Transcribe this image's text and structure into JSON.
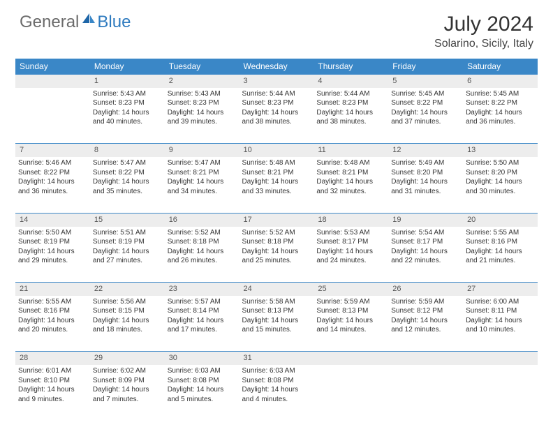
{
  "logo": {
    "text1": "General",
    "text2": "Blue"
  },
  "title": "July 2024",
  "subtitle": "Solarino, Sicily, Italy",
  "colors": {
    "header_bg": "#3a87c7",
    "header_text": "#ffffff",
    "daynum_bg": "#ededed",
    "logo_gray": "#6b6b6b",
    "logo_blue": "#2f7bbf"
  },
  "weekdays": [
    "Sunday",
    "Monday",
    "Tuesday",
    "Wednesday",
    "Thursday",
    "Friday",
    "Saturday"
  ],
  "weeks": [
    {
      "nums": [
        "",
        "1",
        "2",
        "3",
        "4",
        "5",
        "6"
      ],
      "cells": [
        null,
        {
          "sunrise": "Sunrise: 5:43 AM",
          "sunset": "Sunset: 8:23 PM",
          "day1": "Daylight: 14 hours",
          "day2": "and 40 minutes."
        },
        {
          "sunrise": "Sunrise: 5:43 AM",
          "sunset": "Sunset: 8:23 PM",
          "day1": "Daylight: 14 hours",
          "day2": "and 39 minutes."
        },
        {
          "sunrise": "Sunrise: 5:44 AM",
          "sunset": "Sunset: 8:23 PM",
          "day1": "Daylight: 14 hours",
          "day2": "and 38 minutes."
        },
        {
          "sunrise": "Sunrise: 5:44 AM",
          "sunset": "Sunset: 8:23 PM",
          "day1": "Daylight: 14 hours",
          "day2": "and 38 minutes."
        },
        {
          "sunrise": "Sunrise: 5:45 AM",
          "sunset": "Sunset: 8:22 PM",
          "day1": "Daylight: 14 hours",
          "day2": "and 37 minutes."
        },
        {
          "sunrise": "Sunrise: 5:45 AM",
          "sunset": "Sunset: 8:22 PM",
          "day1": "Daylight: 14 hours",
          "day2": "and 36 minutes."
        }
      ]
    },
    {
      "nums": [
        "7",
        "8",
        "9",
        "10",
        "11",
        "12",
        "13"
      ],
      "cells": [
        {
          "sunrise": "Sunrise: 5:46 AM",
          "sunset": "Sunset: 8:22 PM",
          "day1": "Daylight: 14 hours",
          "day2": "and 36 minutes."
        },
        {
          "sunrise": "Sunrise: 5:47 AM",
          "sunset": "Sunset: 8:22 PM",
          "day1": "Daylight: 14 hours",
          "day2": "and 35 minutes."
        },
        {
          "sunrise": "Sunrise: 5:47 AM",
          "sunset": "Sunset: 8:21 PM",
          "day1": "Daylight: 14 hours",
          "day2": "and 34 minutes."
        },
        {
          "sunrise": "Sunrise: 5:48 AM",
          "sunset": "Sunset: 8:21 PM",
          "day1": "Daylight: 14 hours",
          "day2": "and 33 minutes."
        },
        {
          "sunrise": "Sunrise: 5:48 AM",
          "sunset": "Sunset: 8:21 PM",
          "day1": "Daylight: 14 hours",
          "day2": "and 32 minutes."
        },
        {
          "sunrise": "Sunrise: 5:49 AM",
          "sunset": "Sunset: 8:20 PM",
          "day1": "Daylight: 14 hours",
          "day2": "and 31 minutes."
        },
        {
          "sunrise": "Sunrise: 5:50 AM",
          "sunset": "Sunset: 8:20 PM",
          "day1": "Daylight: 14 hours",
          "day2": "and 30 minutes."
        }
      ]
    },
    {
      "nums": [
        "14",
        "15",
        "16",
        "17",
        "18",
        "19",
        "20"
      ],
      "cells": [
        {
          "sunrise": "Sunrise: 5:50 AM",
          "sunset": "Sunset: 8:19 PM",
          "day1": "Daylight: 14 hours",
          "day2": "and 29 minutes."
        },
        {
          "sunrise": "Sunrise: 5:51 AM",
          "sunset": "Sunset: 8:19 PM",
          "day1": "Daylight: 14 hours",
          "day2": "and 27 minutes."
        },
        {
          "sunrise": "Sunrise: 5:52 AM",
          "sunset": "Sunset: 8:18 PM",
          "day1": "Daylight: 14 hours",
          "day2": "and 26 minutes."
        },
        {
          "sunrise": "Sunrise: 5:52 AM",
          "sunset": "Sunset: 8:18 PM",
          "day1": "Daylight: 14 hours",
          "day2": "and 25 minutes."
        },
        {
          "sunrise": "Sunrise: 5:53 AM",
          "sunset": "Sunset: 8:17 PM",
          "day1": "Daylight: 14 hours",
          "day2": "and 24 minutes."
        },
        {
          "sunrise": "Sunrise: 5:54 AM",
          "sunset": "Sunset: 8:17 PM",
          "day1": "Daylight: 14 hours",
          "day2": "and 22 minutes."
        },
        {
          "sunrise": "Sunrise: 5:55 AM",
          "sunset": "Sunset: 8:16 PM",
          "day1": "Daylight: 14 hours",
          "day2": "and 21 minutes."
        }
      ]
    },
    {
      "nums": [
        "21",
        "22",
        "23",
        "24",
        "25",
        "26",
        "27"
      ],
      "cells": [
        {
          "sunrise": "Sunrise: 5:55 AM",
          "sunset": "Sunset: 8:16 PM",
          "day1": "Daylight: 14 hours",
          "day2": "and 20 minutes."
        },
        {
          "sunrise": "Sunrise: 5:56 AM",
          "sunset": "Sunset: 8:15 PM",
          "day1": "Daylight: 14 hours",
          "day2": "and 18 minutes."
        },
        {
          "sunrise": "Sunrise: 5:57 AM",
          "sunset": "Sunset: 8:14 PM",
          "day1": "Daylight: 14 hours",
          "day2": "and 17 minutes."
        },
        {
          "sunrise": "Sunrise: 5:58 AM",
          "sunset": "Sunset: 8:13 PM",
          "day1": "Daylight: 14 hours",
          "day2": "and 15 minutes."
        },
        {
          "sunrise": "Sunrise: 5:59 AM",
          "sunset": "Sunset: 8:13 PM",
          "day1": "Daylight: 14 hours",
          "day2": "and 14 minutes."
        },
        {
          "sunrise": "Sunrise: 5:59 AM",
          "sunset": "Sunset: 8:12 PM",
          "day1": "Daylight: 14 hours",
          "day2": "and 12 minutes."
        },
        {
          "sunrise": "Sunrise: 6:00 AM",
          "sunset": "Sunset: 8:11 PM",
          "day1": "Daylight: 14 hours",
          "day2": "and 10 minutes."
        }
      ]
    },
    {
      "nums": [
        "28",
        "29",
        "30",
        "31",
        "",
        "",
        ""
      ],
      "cells": [
        {
          "sunrise": "Sunrise: 6:01 AM",
          "sunset": "Sunset: 8:10 PM",
          "day1": "Daylight: 14 hours",
          "day2": "and 9 minutes."
        },
        {
          "sunrise": "Sunrise: 6:02 AM",
          "sunset": "Sunset: 8:09 PM",
          "day1": "Daylight: 14 hours",
          "day2": "and 7 minutes."
        },
        {
          "sunrise": "Sunrise: 6:03 AM",
          "sunset": "Sunset: 8:08 PM",
          "day1": "Daylight: 14 hours",
          "day2": "and 5 minutes."
        },
        {
          "sunrise": "Sunrise: 6:03 AM",
          "sunset": "Sunset: 8:08 PM",
          "day1": "Daylight: 14 hours",
          "day2": "and 4 minutes."
        },
        null,
        null,
        null
      ]
    }
  ]
}
